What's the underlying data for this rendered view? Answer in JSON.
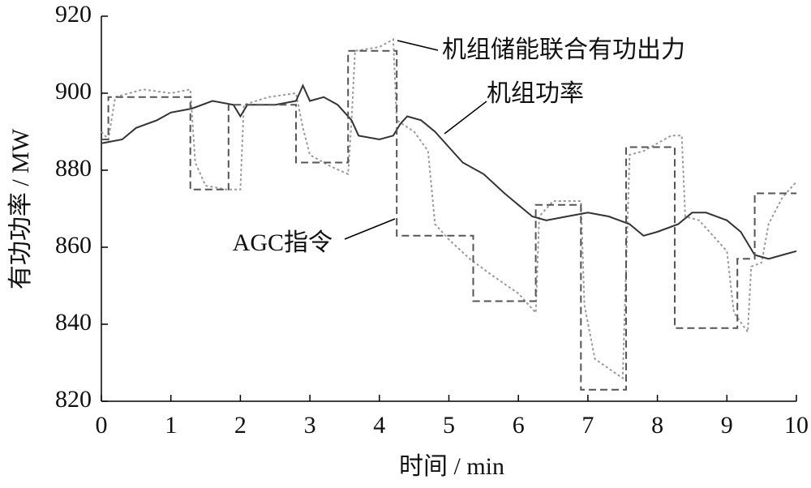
{
  "chart_data": {
    "type": "line",
    "xlabel": "时间 / min",
    "ylabel": "有功功率 / MW",
    "xlim": [
      0,
      10
    ],
    "xticks": [
      0,
      1,
      2,
      3,
      4,
      5,
      6,
      7,
      8,
      9,
      10
    ],
    "ylim": [
      820,
      920
    ],
    "yticks": [
      820,
      840,
      860,
      880,
      900,
      920
    ],
    "series": [
      {
        "name": "机组储能联合有功出力",
        "color": "#9a9a9a",
        "dash": "3,3",
        "x": [
          0,
          0.1,
          0.2,
          0.4,
          0.6,
          1.0,
          1.28,
          1.35,
          1.5,
          1.8,
          2.0,
          2.05,
          2.4,
          2.8,
          2.9,
          3.0,
          3.3,
          3.55,
          3.6,
          3.65,
          4.0,
          4.2,
          4.25,
          4.5,
          4.7,
          4.8,
          5.0,
          5.3,
          5.6,
          6.0,
          6.25,
          6.3,
          6.5,
          6.9,
          6.95,
          7.1,
          7.5,
          7.6,
          7.8,
          8.2,
          8.35,
          8.4,
          8.6,
          9.0,
          9.1,
          9.3,
          9.35,
          9.5,
          9.6,
          9.8,
          10
        ],
        "values": [
          890,
          888,
          899,
          900,
          901,
          900,
          901,
          882,
          876,
          875,
          875,
          897,
          899,
          900,
          891,
          884,
          881,
          879,
          893,
          911,
          912,
          914,
          893,
          890,
          885,
          866,
          862,
          857,
          853,
          848,
          843,
          868,
          872,
          872,
          845,
          831,
          826,
          884,
          885,
          889,
          889,
          868,
          867,
          859,
          843,
          838,
          855,
          856,
          866,
          873,
          877
        ]
      },
      {
        "name": "机组功率",
        "color": "#333333",
        "dash": "none",
        "x": [
          0,
          0.3,
          0.5,
          0.8,
          1.0,
          1.3,
          1.6,
          1.9,
          2.0,
          2.1,
          2.5,
          2.8,
          2.9,
          3.0,
          3.2,
          3.4,
          3.6,
          3.7,
          4.0,
          4.2,
          4.3,
          4.4,
          4.6,
          4.8,
          5.0,
          5.2,
          5.5,
          5.8,
          6.0,
          6.2,
          6.4,
          6.7,
          7.0,
          7.3,
          7.6,
          7.8,
          8.0,
          8.3,
          8.5,
          8.7,
          9.0,
          9.2,
          9.4,
          9.6,
          9.8,
          10
        ],
        "values": [
          887,
          888,
          891,
          893,
          895,
          896,
          898,
          897,
          894,
          897,
          897,
          898,
          902,
          898,
          899,
          897,
          893,
          889,
          888,
          889,
          892,
          894,
          893,
          890,
          886,
          882,
          879,
          874,
          871,
          868,
          867,
          868,
          869,
          868,
          866,
          863,
          864,
          866,
          869,
          869,
          867,
          864,
          858,
          857,
          858,
          859
        ]
      },
      {
        "name": "AGC指令",
        "color": "#555555",
        "dash": "9,5",
        "x": [
          0,
          0.1,
          0.1,
          1.28,
          1.28,
          1.83,
          1.83,
          2.8,
          2.8,
          3.55,
          3.55,
          4.25,
          4.25,
          5.35,
          5.35,
          6.25,
          6.25,
          6.9,
          6.9,
          7.55,
          7.55,
          8.25,
          8.25,
          9.15,
          9.15,
          9.4,
          9.4,
          10
        ],
        "values": [
          888,
          888,
          899,
          899,
          875,
          875,
          897,
          897,
          882,
          882,
          911,
          911,
          863,
          863,
          846,
          846,
          871,
          871,
          823,
          823,
          886,
          886,
          839,
          839,
          857,
          857,
          874,
          874
        ]
      }
    ]
  }
}
